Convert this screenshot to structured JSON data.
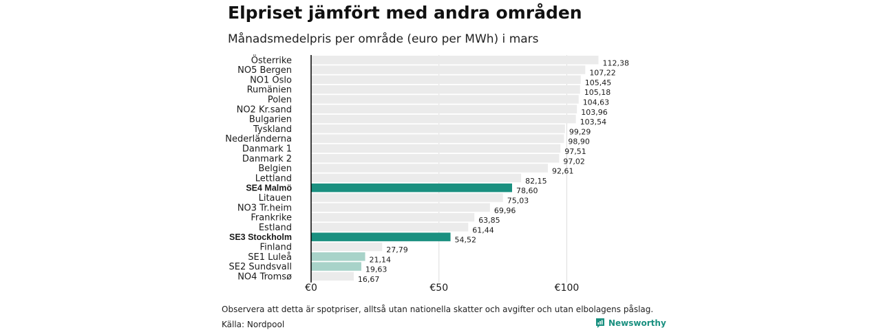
{
  "header": {
    "title": "Elpriset jämfört med andra områden",
    "subtitle": "Månadsmedelpris per område (euro per MWh) i mars"
  },
  "footer": {
    "note": "Observera att detta är spotpriser, alltså utan nationella skatter och avgifter och utan elbolagens påslag.",
    "source": "Källa: Nordpool",
    "brand": "Newsworthy"
  },
  "colors": {
    "default_bar": "#ebebeb",
    "highlight_bar": "#1a9080",
    "light_highlight_bar": "#a8d3c9",
    "grid": "#dddddd",
    "axis": "#000000",
    "brand": "#1a9080"
  },
  "chart_data": {
    "type": "bar",
    "orientation": "horizontal",
    "title": "Elpriset jämfört med andra områden",
    "subtitle": "Månadsmedelpris per område (euro per MWh) i mars",
    "xlabel": "",
    "ylabel": "",
    "xlim": [
      0,
      118
    ],
    "ticks": [
      {
        "value": 0,
        "label": "€0"
      },
      {
        "value": 50,
        "label": "€50"
      },
      {
        "value": 100,
        "label": "€100"
      }
    ],
    "grid": true,
    "categories": [
      "Österrike",
      "NO5 Bergen",
      "NO1 Oslo",
      "Rumänien",
      "Polen",
      "NO2 Kr.sand",
      "Bulgarien",
      "Tyskland",
      "Nederländerna",
      "Danmark 1",
      "Danmark 2",
      "Belgien",
      "Lettland",
      "SE4 Malmö",
      "Litauen",
      "NO3 Tr.heim",
      "Frankrike",
      "Estland",
      "SE3 Stockholm",
      "Finland",
      "SE1 Luleå",
      "SE2 Sundsvall",
      "NO4 Tromsø"
    ],
    "values": [
      112.38,
      107.22,
      105.45,
      105.18,
      104.63,
      103.96,
      103.54,
      99.29,
      98.9,
      97.51,
      97.02,
      92.61,
      82.15,
      78.6,
      75.03,
      69.96,
      63.85,
      61.44,
      54.52,
      27.79,
      21.14,
      19.63,
      16.67
    ],
    "value_labels": [
      "112,38",
      "107,22",
      "105,45",
      "105,18",
      "104,63",
      "103,96",
      "103,54",
      "99,29",
      "98,90",
      "97,51",
      "97,02",
      "92,61",
      "82,15",
      "78,60",
      "75,03",
      "69,96",
      "63,85",
      "61,44",
      "54,52",
      "27,79",
      "21,14",
      "19,63",
      "16,67"
    ],
    "highlight": [
      "none",
      "none",
      "none",
      "none",
      "none",
      "none",
      "none",
      "none",
      "none",
      "none",
      "none",
      "none",
      "none",
      "strong",
      "none",
      "none",
      "none",
      "none",
      "strong",
      "none",
      "light",
      "light",
      "none"
    ]
  }
}
